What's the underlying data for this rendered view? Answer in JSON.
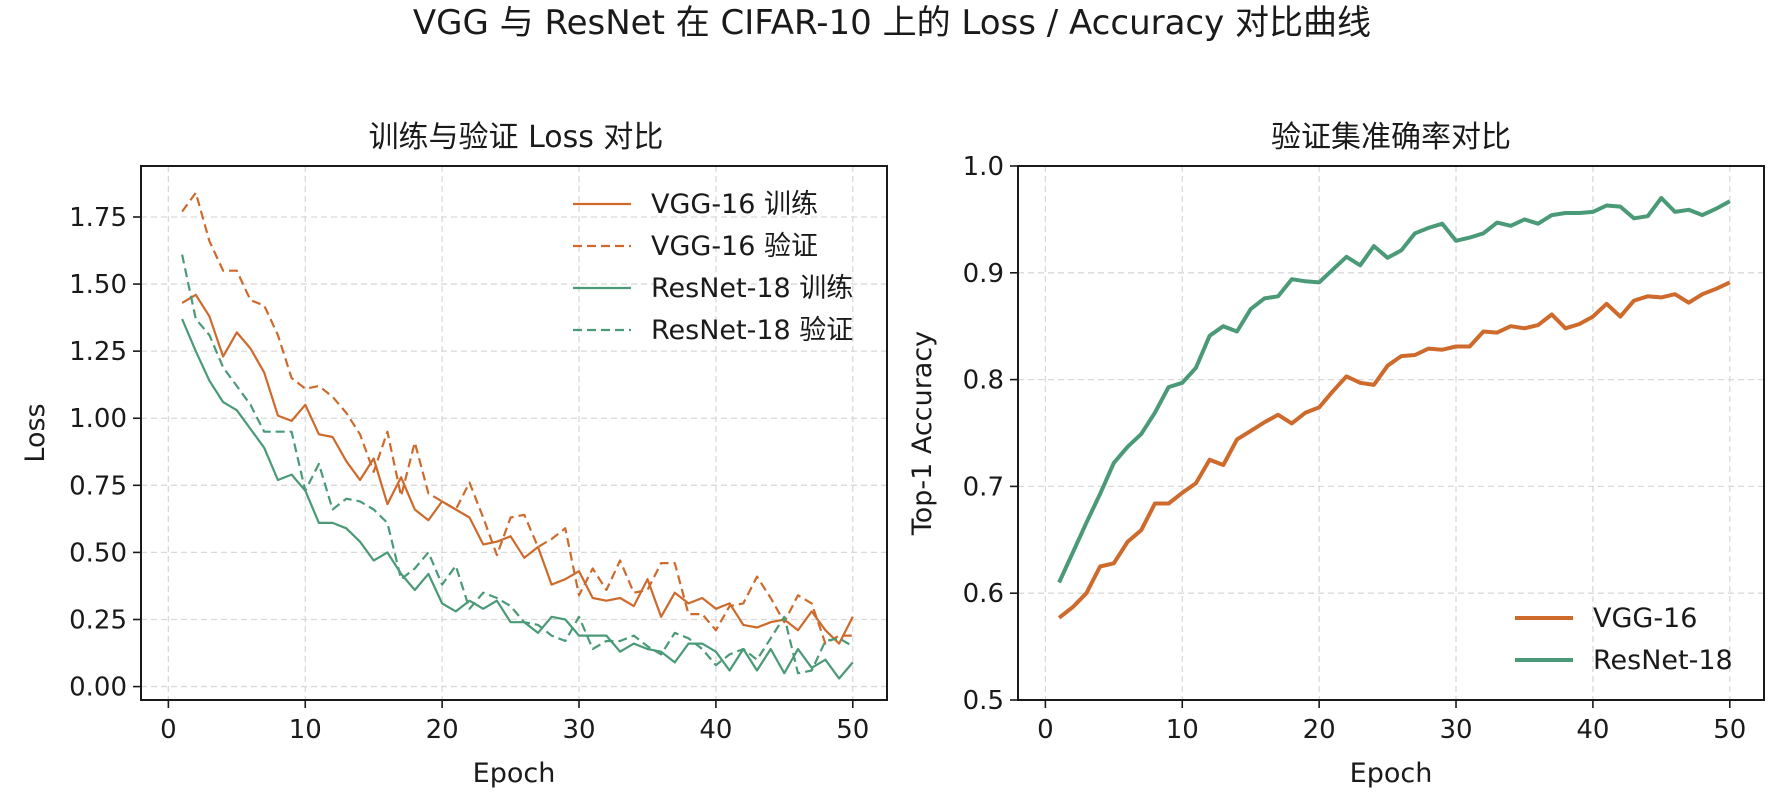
{
  "suptitle": "VGG 与 ResNet 在 CIFAR-10 上的 Loss / Accuracy 对比曲线",
  "colors": {
    "vgg": "#cd6a2c",
    "resnet": "#4a9a78",
    "grid": "#d9d9d9",
    "axis": "#1a1a1a"
  },
  "chart_data": [
    {
      "type": "line",
      "title": "训练与验证 Loss 对比",
      "xlabel": "Epoch",
      "ylabel": "Loss",
      "xlim": [
        -2,
        52.5
      ],
      "ylim": [
        -0.05,
        1.94
      ],
      "xticks": [
        0,
        10,
        20,
        30,
        40,
        50
      ],
      "xtick_labels": [
        "0",
        "10",
        "20",
        "30",
        "40",
        "50"
      ],
      "yticks": [
        0.0,
        0.25,
        0.5,
        0.75,
        1.0,
        1.25,
        1.5,
        1.75
      ],
      "ytick_labels": [
        "0.00",
        "0.25",
        "0.50",
        "0.75",
        "1.00",
        "1.25",
        "1.50",
        "1.75"
      ],
      "grid": true,
      "legend": "top-right",
      "x": [
        1,
        2,
        3,
        4,
        5,
        6,
        7,
        8,
        9,
        10,
        11,
        12,
        13,
        14,
        15,
        16,
        17,
        18,
        19,
        20,
        21,
        22,
        23,
        24,
        25,
        26,
        27,
        28,
        29,
        30,
        31,
        32,
        33,
        34,
        35,
        36,
        37,
        38,
        39,
        40,
        41,
        42,
        43,
        44,
        45,
        46,
        47,
        48,
        49,
        50
      ],
      "series": [
        {
          "name": "VGG-16 训练",
          "color_key": "vgg",
          "dash": "solid",
          "values": [
            1.43,
            1.46,
            1.38,
            1.23,
            1.32,
            1.26,
            1.17,
            1.01,
            0.99,
            1.05,
            0.94,
            0.93,
            0.84,
            0.77,
            0.85,
            0.68,
            0.78,
            0.66,
            0.62,
            0.69,
            0.66,
            0.63,
            0.53,
            0.54,
            0.56,
            0.48,
            0.52,
            0.38,
            0.4,
            0.43,
            0.33,
            0.32,
            0.33,
            0.3,
            0.4,
            0.26,
            0.35,
            0.31,
            0.33,
            0.29,
            0.31,
            0.23,
            0.22,
            0.24,
            0.25,
            0.21,
            0.28,
            0.21,
            0.16,
            0.26
          ]
        },
        {
          "name": "VGG-16 验证",
          "color_key": "vgg",
          "dash": "dashed",
          "values": [
            1.77,
            1.84,
            1.66,
            1.55,
            1.55,
            1.44,
            1.42,
            1.31,
            1.15,
            1.11,
            1.12,
            1.08,
            1.02,
            0.94,
            0.8,
            0.95,
            0.71,
            0.91,
            0.72,
            0.69,
            0.66,
            0.76,
            0.63,
            0.49,
            0.63,
            0.64,
            0.52,
            0.55,
            0.59,
            0.34,
            0.44,
            0.36,
            0.47,
            0.35,
            0.36,
            0.46,
            0.46,
            0.27,
            0.27,
            0.21,
            0.3,
            0.31,
            0.41,
            0.33,
            0.24,
            0.34,
            0.31,
            0.16,
            0.19,
            0.19
          ]
        },
        {
          "name": "ResNet-18 训练",
          "color_key": "resnet",
          "dash": "solid",
          "values": [
            1.37,
            1.25,
            1.14,
            1.06,
            1.03,
            0.96,
            0.89,
            0.77,
            0.79,
            0.73,
            0.61,
            0.61,
            0.59,
            0.54,
            0.47,
            0.5,
            0.42,
            0.36,
            0.42,
            0.31,
            0.28,
            0.32,
            0.29,
            0.32,
            0.24,
            0.24,
            0.2,
            0.26,
            0.25,
            0.19,
            0.19,
            0.19,
            0.13,
            0.16,
            0.14,
            0.13,
            0.09,
            0.16,
            0.16,
            0.13,
            0.06,
            0.14,
            0.06,
            0.14,
            0.05,
            0.14,
            0.07,
            0.1,
            0.03,
            0.09
          ]
        },
        {
          "name": "ResNet-18 验证",
          "color_key": "resnet",
          "dash": "dashed",
          "values": [
            1.61,
            1.37,
            1.31,
            1.19,
            1.12,
            1.05,
            0.95,
            0.95,
            0.95,
            0.73,
            0.83,
            0.66,
            0.7,
            0.69,
            0.66,
            0.61,
            0.4,
            0.44,
            0.5,
            0.38,
            0.45,
            0.29,
            0.35,
            0.33,
            0.3,
            0.24,
            0.23,
            0.19,
            0.17,
            0.26,
            0.14,
            0.17,
            0.17,
            0.19,
            0.15,
            0.12,
            0.2,
            0.18,
            0.14,
            0.08,
            0.12,
            0.14,
            0.1,
            0.18,
            0.26,
            0.05,
            0.06,
            0.17,
            0.18,
            0.15
          ]
        }
      ]
    },
    {
      "type": "line",
      "title": "验证集准确率对比",
      "xlabel": "Epoch",
      "ylabel": "Top-1 Accuracy",
      "xlim": [
        -2,
        52.5
      ],
      "ylim": [
        0.5,
        1.0
      ],
      "xticks": [
        0,
        10,
        20,
        30,
        40,
        50
      ],
      "xtick_labels": [
        "0",
        "10",
        "20",
        "30",
        "40",
        "50"
      ],
      "yticks": [
        0.5,
        0.6,
        0.7,
        0.8,
        0.9,
        1.0
      ],
      "ytick_labels": [
        "0.5",
        "0.6",
        "0.7",
        "0.8",
        "0.9",
        "1.0"
      ],
      "grid": true,
      "legend": "bottom-right",
      "x": [
        1,
        2,
        3,
        4,
        5,
        6,
        7,
        8,
        9,
        10,
        11,
        12,
        13,
        14,
        15,
        16,
        17,
        18,
        19,
        20,
        21,
        22,
        23,
        24,
        25,
        26,
        27,
        28,
        29,
        30,
        31,
        32,
        33,
        34,
        35,
        36,
        37,
        38,
        39,
        40,
        41,
        42,
        43,
        44,
        45,
        46,
        47,
        48,
        49,
        50
      ],
      "series": [
        {
          "name": "VGG-16",
          "color_key": "vgg",
          "dash": "solid",
          "values": [
            0.577,
            0.587,
            0.6,
            0.625,
            0.628,
            0.648,
            0.659,
            0.684,
            0.684,
            0.694,
            0.703,
            0.725,
            0.72,
            0.744,
            0.752,
            0.76,
            0.767,
            0.759,
            0.769,
            0.774,
            0.789,
            0.803,
            0.797,
            0.795,
            0.813,
            0.822,
            0.823,
            0.829,
            0.828,
            0.831,
            0.831,
            0.845,
            0.844,
            0.85,
            0.848,
            0.851,
            0.861,
            0.848,
            0.852,
            0.859,
            0.871,
            0.859,
            0.874,
            0.878,
            0.877,
            0.88,
            0.872,
            0.88,
            0.885,
            0.891
          ]
        },
        {
          "name": "ResNet-18",
          "color_key": "resnet",
          "dash": "solid",
          "values": [
            0.61,
            0.638,
            0.666,
            0.693,
            0.722,
            0.737,
            0.749,
            0.769,
            0.793,
            0.797,
            0.811,
            0.841,
            0.85,
            0.845,
            0.866,
            0.876,
            0.878,
            0.894,
            0.892,
            0.891,
            0.903,
            0.915,
            0.907,
            0.925,
            0.914,
            0.921,
            0.937,
            0.942,
            0.946,
            0.93,
            0.933,
            0.937,
            0.947,
            0.944,
            0.95,
            0.946,
            0.954,
            0.956,
            0.956,
            0.957,
            0.963,
            0.962,
            0.951,
            0.953,
            0.97,
            0.957,
            0.959,
            0.954,
            0.96,
            0.967
          ]
        }
      ]
    }
  ]
}
